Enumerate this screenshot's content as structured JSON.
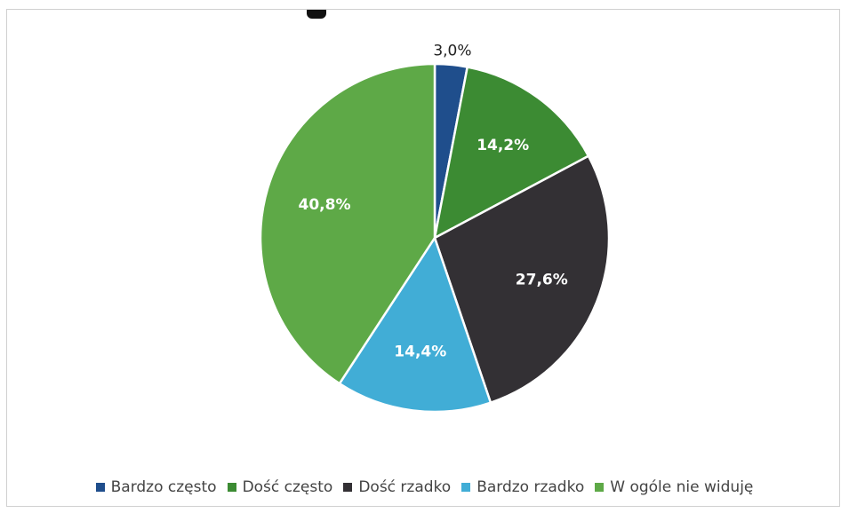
{
  "chart_data": {
    "type": "pie",
    "title": "",
    "categories": [
      "Bardzo często",
      "Dość często",
      "Dość rzadko",
      "Bardzo rzadko",
      "W ogóle nie widuję"
    ],
    "values": [
      3.0,
      14.2,
      27.6,
      14.4,
      40.8
    ],
    "labels": [
      "3,0%",
      "14,2%",
      "27,6%",
      "14,4%",
      "40,8%"
    ],
    "colors": [
      "#1f4e8c",
      "#3c8b33",
      "#333034",
      "#41add6",
      "#5ea947"
    ],
    "label_colors": [
      "#222222",
      "#ffffff",
      "#ffffff",
      "#ffffff",
      "#ffffff"
    ],
    "legend_position": "bottom"
  }
}
